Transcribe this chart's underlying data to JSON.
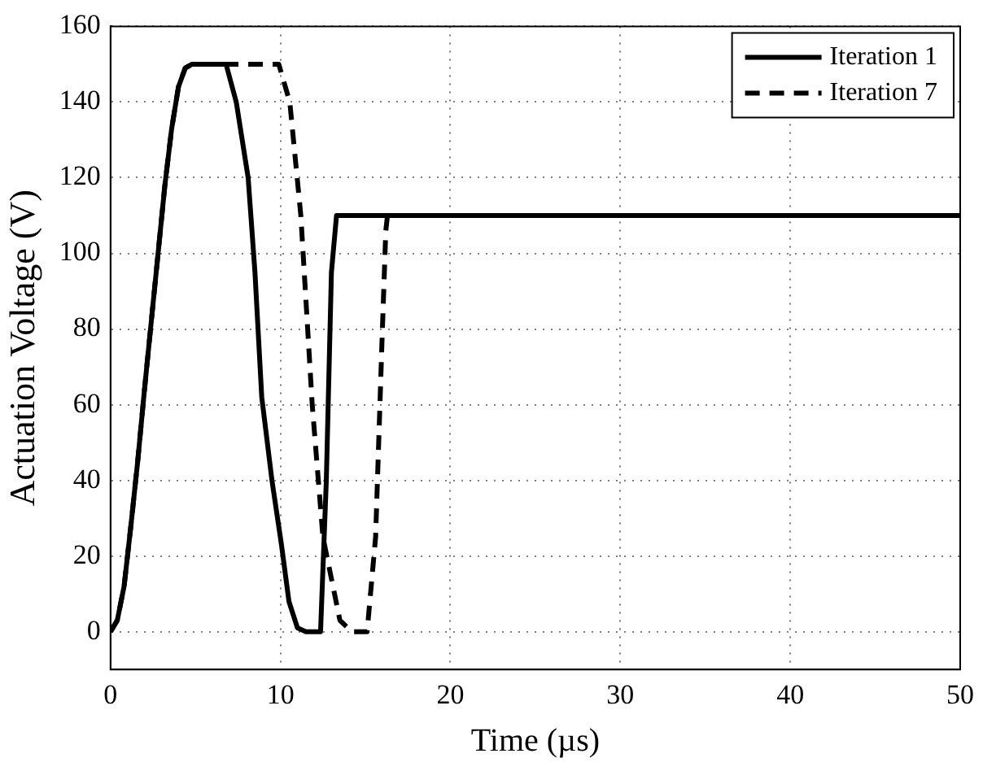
{
  "chart_data": {
    "type": "line",
    "xlabel": "Time (µs)",
    "ylabel": "Actuation Voltage (V)",
    "xlim": [
      0,
      50
    ],
    "xticks": [
      0,
      10,
      20,
      30,
      40,
      50
    ],
    "ylim": [
      -10,
      160
    ],
    "yticks": [
      0,
      20,
      40,
      60,
      80,
      100,
      120,
      140,
      160
    ],
    "grid": true,
    "legend": "top right",
    "marker": "none",
    "series": [
      {
        "name": "Iteration 1",
        "color": "#000000",
        "line_style": "solid",
        "x": [
          0,
          0.4,
          0.8,
          1.2,
          1.6,
          2,
          2.4,
          2.8,
          3.2,
          3.6,
          4,
          4.4,
          4.8,
          6.8,
          7.4,
          8.1,
          8.5,
          8.9,
          9.5,
          10.06,
          10.5,
          11,
          11.5,
          12.36,
          12.7,
          13,
          13.3,
          50
        ],
        "values": [
          0,
          3,
          12,
          28,
          45,
          64,
          82,
          100,
          118,
          133,
          144,
          149,
          150,
          150,
          140,
          120,
          95,
          62,
          40,
          23,
          8,
          1,
          0,
          0,
          40,
          95,
          110,
          110
        ]
      },
      {
        "name": "Iteration 7",
        "color": "#000000",
        "line_style": "dashed",
        "x": [
          0,
          0.4,
          0.8,
          1.2,
          1.6,
          2,
          2.4,
          2.8,
          3.2,
          3.6,
          4,
          4.4,
          4.8,
          9.9,
          10.55,
          11.2,
          11.87,
          12.5,
          13.5,
          14.2,
          15.1,
          15.6,
          16,
          16.2,
          16.3,
          50
        ],
        "values": [
          0,
          3,
          12,
          28,
          45,
          64,
          82,
          100,
          118,
          133,
          144,
          149,
          150,
          150,
          140,
          110,
          60,
          25,
          3,
          0,
          0,
          25,
          80,
          106,
          110,
          110
        ]
      }
    ]
  }
}
